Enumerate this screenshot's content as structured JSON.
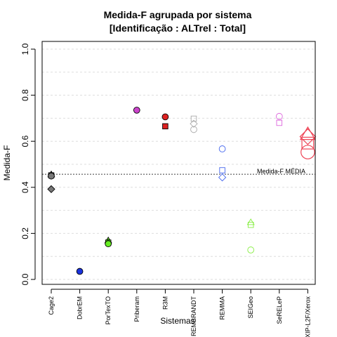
{
  "chart_data": {
    "type": "scatter",
    "title": "Medida-F agrupada por sistema",
    "subtitle": "[Identificação : ALTrel : Total]",
    "xlabel": "Sistemas",
    "ylabel": "Medida-F",
    "ylim": [
      0.0,
      1.0
    ],
    "yticks": [
      "0.0",
      "0.2",
      "0.4",
      "0.6",
      "0.8",
      "1.0"
    ],
    "grid": "horizontal dashed",
    "categories": [
      "Cage2",
      "DobrEM",
      "PorTexTO",
      "Priberam",
      "R3M",
      "REMBRANDT",
      "REMMA",
      "SEIGeo",
      "SeRELeP",
      "XIP-L2F/Xerox"
    ],
    "reference_line": {
      "label": "Medida-F MÉDIA",
      "value": 0.457
    },
    "points": [
      {
        "category": "Cage2",
        "value": 0.455,
        "shape": "triangle",
        "color": "#777777",
        "filled": true
      },
      {
        "category": "Cage2",
        "value": 0.452,
        "shape": "square",
        "color": "#777777",
        "filled": true
      },
      {
        "category": "Cage2",
        "value": 0.449,
        "shape": "circle",
        "color": "#777777",
        "filled": true
      },
      {
        "category": "Cage2",
        "value": 0.392,
        "shape": "diamond",
        "color": "#777777",
        "filled": true
      },
      {
        "category": "DobrEM",
        "value": 0.035,
        "shape": "circle",
        "color": "#1a33dd",
        "filled": true
      },
      {
        "category": "PorTexTO",
        "value": 0.168,
        "shape": "triangle",
        "color": "#66ee22",
        "filled": true
      },
      {
        "category": "PorTexTO",
        "value": 0.16,
        "shape": "square",
        "color": "#66ee22",
        "filled": true
      },
      {
        "category": "PorTexTO",
        "value": 0.155,
        "shape": "circle",
        "color": "#66ee22",
        "filled": true
      },
      {
        "category": "Priberam",
        "value": 0.735,
        "shape": "circle",
        "color": "#cc44cc",
        "filled": true
      },
      {
        "category": "R3M",
        "value": 0.706,
        "shape": "circle",
        "color": "#dd2222",
        "filled": true
      },
      {
        "category": "R3M",
        "value": 0.665,
        "shape": "square",
        "color": "#dd2222",
        "filled": true
      },
      {
        "category": "REMBRANDT",
        "value": 0.698,
        "shape": "square",
        "color": "#aaaaaa",
        "filled": false
      },
      {
        "category": "REMBRANDT",
        "value": 0.676,
        "shape": "diamond",
        "color": "#aaaaaa",
        "filled": false
      },
      {
        "category": "REMBRANDT",
        "value": 0.651,
        "shape": "circle",
        "color": "#aaaaaa",
        "filled": false
      },
      {
        "category": "REMMA",
        "value": 0.567,
        "shape": "circle",
        "color": "#4466ee",
        "filled": false
      },
      {
        "category": "REMMA",
        "value": 0.474,
        "shape": "square",
        "color": "#4466ee",
        "filled": false
      },
      {
        "category": "REMMA",
        "value": 0.443,
        "shape": "diamond",
        "color": "#4466ee",
        "filled": false
      },
      {
        "category": "SEIGeo",
        "value": 0.247,
        "shape": "triangle",
        "color": "#88ee44",
        "filled": false
      },
      {
        "category": "SEIGeo",
        "value": 0.237,
        "shape": "square",
        "color": "#88ee44",
        "filled": false
      },
      {
        "category": "SEIGeo",
        "value": 0.128,
        "shape": "circle",
        "color": "#88ee44",
        "filled": false
      },
      {
        "category": "SeRELeP",
        "value": 0.708,
        "shape": "circle",
        "color": "#dd66dd",
        "filled": false
      },
      {
        "category": "SeRELeP",
        "value": 0.68,
        "shape": "square",
        "color": "#dd66dd",
        "filled": false
      },
      {
        "category": "XIP-L2F/Xerox",
        "value": 0.628,
        "shape": "triangle-large",
        "color": "#ee4455",
        "filled": false
      },
      {
        "category": "XIP-L2F/Xerox",
        "value": 0.62,
        "shape": "diamond-large",
        "color": "#ee4455",
        "filled": false
      },
      {
        "category": "XIP-L2F/Xerox",
        "value": 0.592,
        "shape": "square-large",
        "color": "#ee4455",
        "filled": false
      },
      {
        "category": "XIP-L2F/Xerox",
        "value": 0.553,
        "shape": "circle-large",
        "color": "#ee4455",
        "filled": false
      }
    ]
  }
}
